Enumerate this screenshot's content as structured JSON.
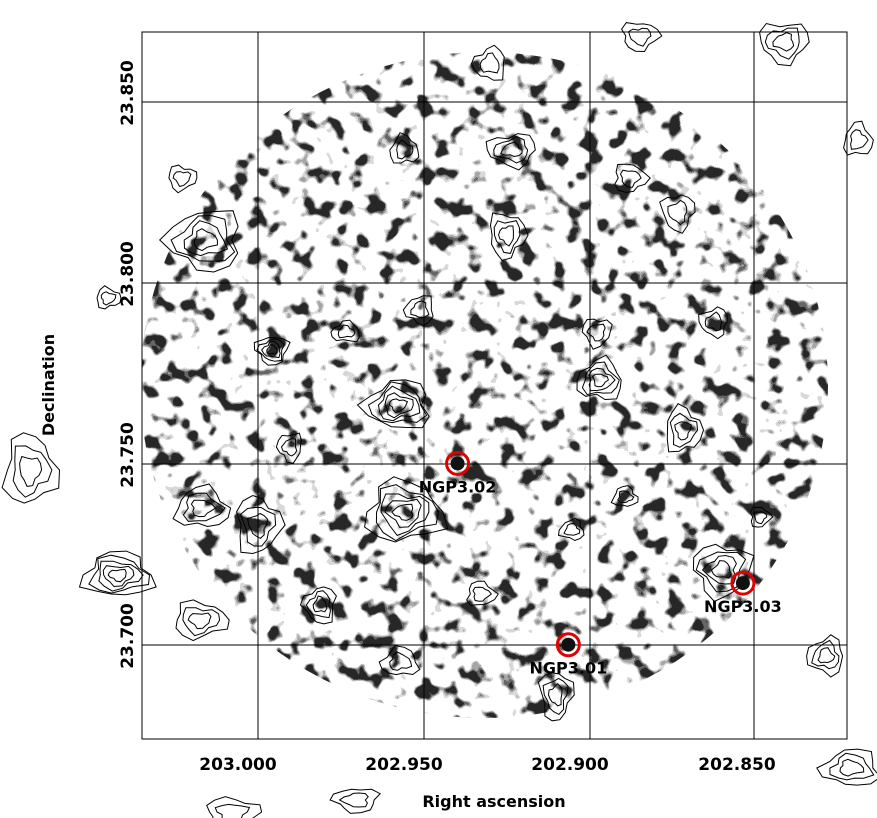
{
  "chart_data": {
    "type": "scatter",
    "title": "",
    "xlabel": "Right ascension",
    "ylabel": "Declination",
    "xlim": [
      203.035,
      202.825
    ],
    "ylim": [
      23.673,
      23.868
    ],
    "x_ticks": [
      "203.000",
      "202.950",
      "202.900",
      "202.850"
    ],
    "y_ticks": [
      "23.850",
      "23.800",
      "23.750",
      "23.700"
    ],
    "grid": true,
    "background": "greyscale sky map with overlaid contours",
    "marker_color": "#e00000",
    "sources": [
      {
        "name": "NGP3.02",
        "ra": 202.941,
        "dec": 23.749
      },
      {
        "name": "NGP3.03",
        "ra": 202.856,
        "dec": 23.716
      },
      {
        "name": "NGP3.01",
        "ra": 202.908,
        "dec": 23.699
      }
    ]
  }
}
